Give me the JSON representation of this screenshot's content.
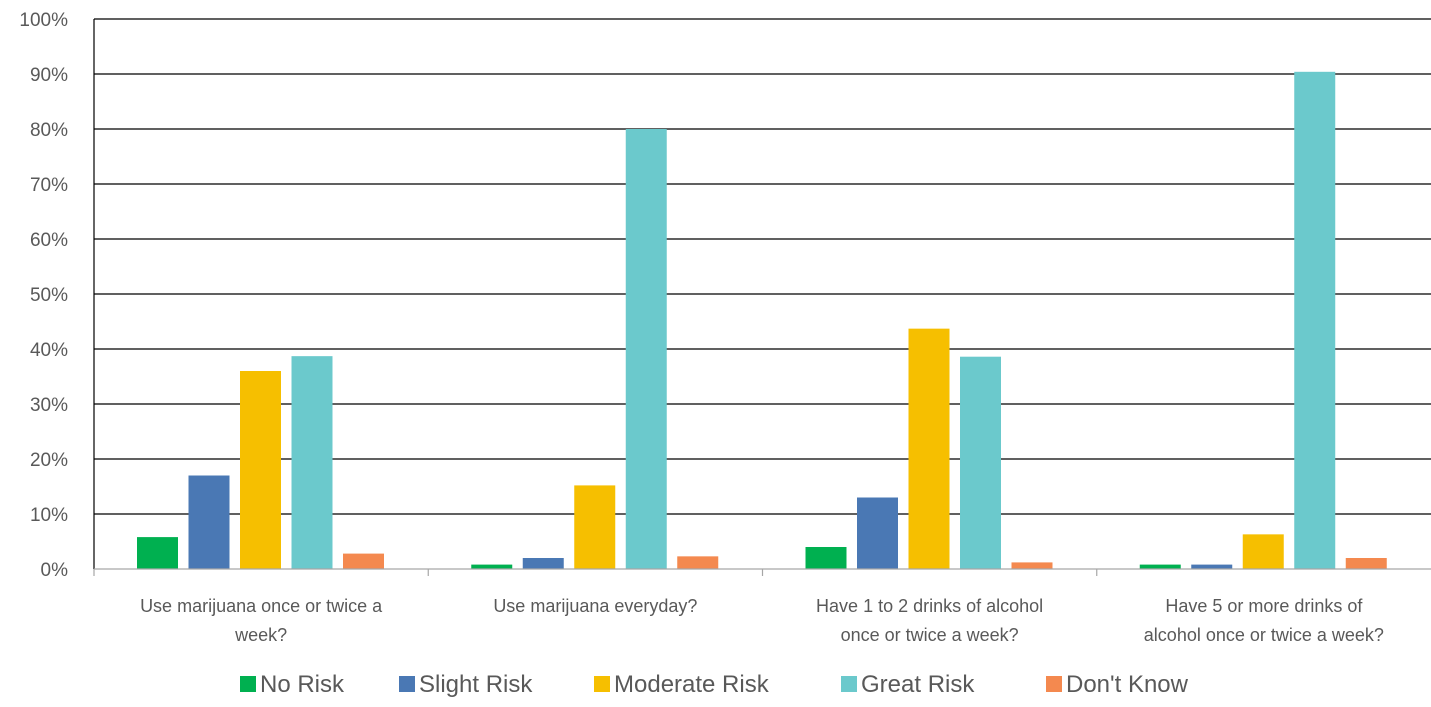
{
  "chart_data": {
    "type": "bar",
    "title": "",
    "xlabel": "",
    "ylabel": "",
    "ylim": [
      0,
      100
    ],
    "y_ticks": [
      "0%",
      "10%",
      "20%",
      "30%",
      "40%",
      "50%",
      "60%",
      "70%",
      "80%",
      "90%",
      "100%"
    ],
    "y_tick_values": [
      0,
      10,
      20,
      30,
      40,
      50,
      60,
      70,
      80,
      90,
      100
    ],
    "grid": true,
    "legend_position": "bottom",
    "categories": [
      [
        "Use marijuana once or twice a",
        "week?"
      ],
      [
        "Use marijuana everyday?"
      ],
      [
        "Have 1 to 2 drinks of alcohol",
        "once or twice a week?"
      ],
      [
        "Have 5 or more drinks of",
        "alcohol once or twice a week?"
      ]
    ],
    "series": [
      {
        "name": "No Risk",
        "color": "#00b050",
        "values": [
          5.8,
          0.8,
          4.0,
          0.8
        ]
      },
      {
        "name": "Slight Risk",
        "color": "#4a78b4",
        "values": [
          17.0,
          2.0,
          13.0,
          0.8
        ]
      },
      {
        "name": "Moderate Risk",
        "color": "#f6bf00",
        "values": [
          36.0,
          15.2,
          43.7,
          6.3
        ]
      },
      {
        "name": "Great Risk",
        "color": "#6bc9cc",
        "values": [
          38.7,
          80.0,
          38.6,
          90.4
        ]
      },
      {
        "name": "Don't Know",
        "color": "#f4894f",
        "values": [
          2.8,
          2.3,
          1.2,
          2.0
        ]
      }
    ]
  }
}
